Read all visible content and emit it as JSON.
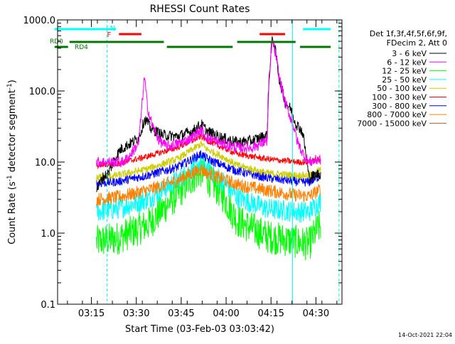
{
  "chart_data": {
    "type": "line",
    "title": "RHESSI Count Rates",
    "xlabel": "Start Time (03-Feb-03 03:03:42)",
    "ylabel_parts": {
      "pre": "Count Rate (s",
      "sup": "-1",
      "post": " detector segment",
      "sup2": "-1",
      "end": ")"
    },
    "x_unit": "minutes after 03:03:42",
    "xlim": [
      0,
      95
    ],
    "ylim": [
      0.1,
      1000
    ],
    "y_scale": "log",
    "y_ticks": [
      {
        "value": 0.1,
        "label": "0.1"
      },
      {
        "value": 1,
        "label": "1.0"
      },
      {
        "value": 10,
        "label": "10.0"
      },
      {
        "value": 100,
        "label": "100.0"
      },
      {
        "value": 1000,
        "label": "1000.0"
      }
    ],
    "x_ticks": [
      {
        "time": "03:15",
        "label": "03:15"
      },
      {
        "time": "03:30",
        "label": "03:30"
      },
      {
        "time": "03:45",
        "label": "03:45"
      },
      {
        "time": "04:00",
        "label": "04:00"
      },
      {
        "time": "04:15",
        "label": "04:15"
      },
      {
        "time": "04:30",
        "label": "04:30"
      }
    ],
    "legend_header": [
      "Det 1f,3f,4f,5f,6f,9f,",
      "FDecim 2, Att 0"
    ],
    "legend_position": "right",
    "series": [
      {
        "name": "3 - 6 keV",
        "color": "#000000",
        "x": [
          13,
          15,
          17,
          19,
          21,
          23,
          25,
          27,
          28,
          29,
          30,
          31,
          33,
          35,
          40,
          45,
          48,
          50,
          55,
          60,
          65,
          70,
          70.5,
          71.5,
          72,
          73,
          74,
          76,
          78,
          79,
          80,
          81,
          82,
          84,
          86,
          88
        ],
        "y": [
          4,
          6,
          7,
          11,
          15,
          17,
          19,
          22,
          28,
          40,
          37,
          30,
          27,
          24,
          23,
          27,
          34,
          27,
          22,
          19,
          20,
          24,
          120,
          480,
          520,
          320,
          150,
          70,
          55,
          40,
          33,
          30,
          25,
          6,
          6.5,
          7
        ]
      },
      {
        "name": "6 - 12 keV",
        "color": "#ff00ff",
        "x": [
          13,
          17,
          19,
          21,
          22,
          23,
          24,
          25,
          26,
          27,
          28,
          29,
          29.5,
          30,
          31,
          32,
          34,
          36,
          38,
          40,
          45,
          48,
          50,
          55,
          60,
          65,
          70,
          70.5,
          71.5,
          72,
          73,
          74,
          76,
          78,
          79,
          80,
          81,
          82,
          84,
          86,
          88
        ],
        "y": [
          10,
          10,
          10,
          10,
          10,
          11,
          12,
          14,
          16,
          18,
          50,
          160,
          100,
          60,
          40,
          30,
          20,
          17,
          17,
          18,
          22,
          28,
          22,
          18,
          16,
          16,
          20,
          90,
          440,
          480,
          300,
          160,
          70,
          40,
          30,
          20,
          16,
          13,
          10,
          10.5,
          11
        ]
      },
      {
        "name": "12 - 25 keV",
        "color": "#00ff00",
        "x": [
          13,
          20,
          30,
          40,
          45,
          48,
          50,
          55,
          60,
          70,
          80,
          84,
          86,
          88
        ],
        "y": [
          0.75,
          0.85,
          1.3,
          3.5,
          6,
          7.5,
          6,
          3.5,
          1.5,
          0.9,
          0.75,
          0.7,
          1.0,
          1.3
        ]
      },
      {
        "name": "25 - 50 keV",
        "color": "#00ffff",
        "x": [
          13,
          20,
          30,
          40,
          45,
          48,
          50,
          55,
          60,
          70,
          80,
          84,
          86,
          88
        ],
        "y": [
          2,
          2.2,
          3,
          5.5,
          8,
          10,
          8,
          5.5,
          3.2,
          2.2,
          2,
          2,
          2.4,
          2.8
        ]
      },
      {
        "name": "50 - 100 keV",
        "color": "#cccc00",
        "x": [
          13,
          20,
          30,
          40,
          45,
          48,
          50,
          55,
          60,
          70,
          80,
          84,
          86,
          88
        ],
        "y": [
          6,
          6.5,
          8,
          11,
          15,
          18,
          15,
          12,
          9,
          7,
          6.5,
          6.5,
          7,
          8
        ]
      },
      {
        "name": "100 - 300 keV",
        "color": "#ff0000",
        "x": [
          13,
          20,
          30,
          40,
          45,
          48,
          50,
          55,
          60,
          70,
          80,
          84,
          86,
          88
        ],
        "y": [
          9,
          9.5,
          12,
          16,
          20,
          23,
          20,
          16,
          13,
          11,
          10,
          10,
          10.5,
          11
        ]
      },
      {
        "name": "300 - 800 keV",
        "color": "#0000ff",
        "x": [
          13,
          20,
          30,
          40,
          45,
          48,
          50,
          55,
          60,
          70,
          80,
          84,
          86,
          88
        ],
        "y": [
          5,
          5.3,
          6.5,
          8.5,
          11,
          13,
          11,
          9,
          7.5,
          6,
          5.3,
          5.2,
          5.8,
          6.5
        ]
      },
      {
        "name": "800 - 7000 keV",
        "color": "#ff8000",
        "x": [
          13,
          20,
          30,
          40,
          45,
          48,
          50,
          55,
          60,
          70,
          80,
          84,
          86,
          88
        ],
        "y": [
          3,
          3.2,
          4,
          5.5,
          7,
          8,
          7,
          5.8,
          4.8,
          4,
          3.4,
          3.3,
          3.7,
          4.2
        ]
      },
      {
        "name": "7000 - 15000 keV",
        "color": "#996633",
        "x": [],
        "y": []
      }
    ],
    "annotations": [
      {
        "text": "N",
        "color": "#00ffff"
      },
      {
        "text": "F",
        "color": "#ff0000"
      },
      {
        "text": "RD0",
        "color": "#007700"
      },
      {
        "text": "RD4",
        "color": "#007700"
      }
    ],
    "status_bars": {
      "night": {
        "color": "#00ffff",
        "intervals": [
          [
            -1,
            19.5
          ],
          [
            82,
            96
          ]
        ]
      },
      "flare": {
        "color": "#ff0000",
        "intervals": [
          [
            20.5,
            28
          ],
          [
            67.5,
            76
          ]
        ]
      },
      "rd0": {
        "color": "#007700",
        "intervals": [
          [
            4,
            35.5
          ],
          [
            60,
            79.5
          ]
        ]
      },
      "rd4": {
        "color": "#007700",
        "intervals": [
          [
            -1,
            3.5
          ],
          [
            36.5,
            58.5
          ],
          [
            81,
            96
          ]
        ]
      }
    },
    "vertical_lines": [
      {
        "x": 0,
        "color": "#00ffff",
        "style": "solid"
      },
      {
        "x": 16.5,
        "color": "#00ffff",
        "style": "dashed"
      },
      {
        "x": 78.5,
        "color": "#00ffff",
        "style": "solid"
      },
      {
        "x": 94,
        "color": "#00ffff",
        "style": "dashed"
      }
    ]
  },
  "footer": {
    "timestamp": "14-Oct-2021 22:04"
  }
}
